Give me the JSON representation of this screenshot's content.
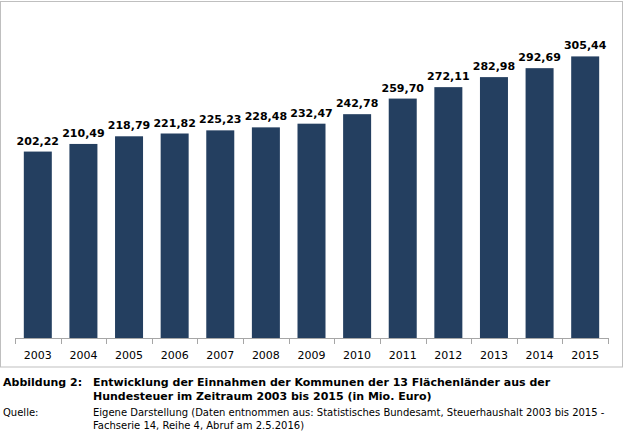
{
  "chart_data": {
    "type": "bar",
    "figure_label": "Abbildung 2:",
    "title": "Entwicklung der Einnahmen der Kommunen der 13 Flächenländer aus der Hundesteuer im Zeitraum 2003 bis 2015 (in Mio. Euro)",
    "source_label": "Quelle:",
    "source": "Eigene Darstellung (Daten entnommen aus: Statistisches Bundesamt, Steuerhaushalt 2003 bis 2015 - Fachserie 14, Reihe 4, Abruf am 2.5.2016)",
    "categories": [
      "2003",
      "2004",
      "2005",
      "2006",
      "2007",
      "2008",
      "2009",
      "2010",
      "2011",
      "2012",
      "2013",
      "2014",
      "2015"
    ],
    "values": [
      202.22,
      210.49,
      218.79,
      221.82,
      225.23,
      228.48,
      232.47,
      242.78,
      259.7,
      272.11,
      282.98,
      292.69,
      305.44
    ],
    "value_labels": [
      "202,22",
      "210,49",
      "218,79",
      "221,82",
      "225,23",
      "228,48",
      "232,47",
      "242,78",
      "259,70",
      "272,11",
      "282,98",
      "292,69",
      "305,44"
    ],
    "color": "#243f60",
    "ylim": [
      0,
      365
    ],
    "tick_labels": "x",
    "data_labels": true,
    "grid": false
  }
}
